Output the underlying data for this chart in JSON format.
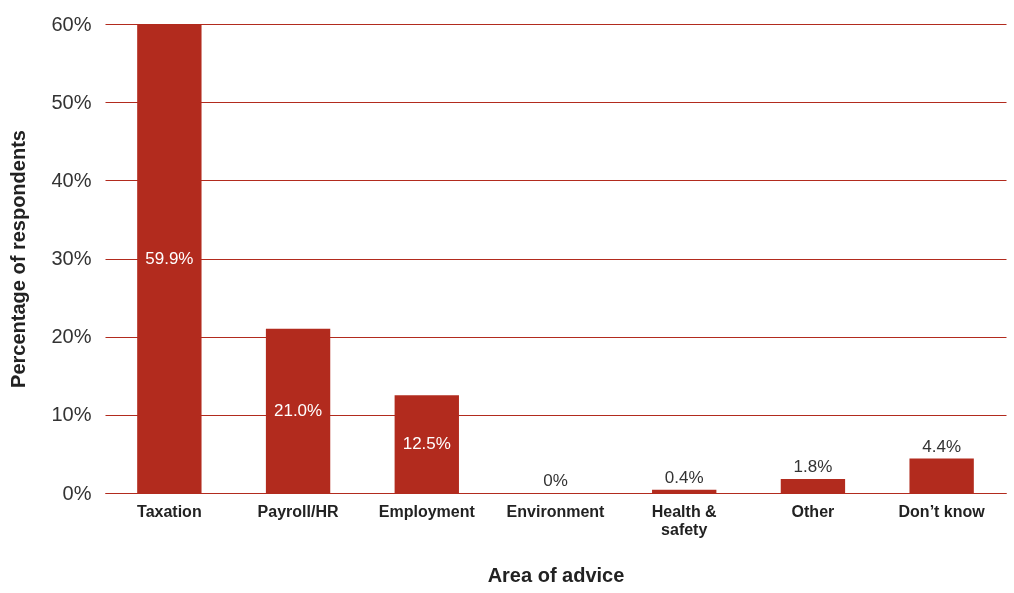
{
  "chart_data": {
    "type": "bar",
    "xlabel": "Area of advice",
    "ylabel": "Percentage of respondents",
    "categories": [
      "Taxation",
      "Payroll/HR",
      "Employment",
      "Environment",
      "Health & safety",
      "Other",
      "Don’t know"
    ],
    "values": [
      59.9,
      21.0,
      12.5,
      0,
      0.4,
      1.8,
      4.4
    ],
    "value_labels": [
      "59.9%",
      "21.0%",
      "12.5%",
      "0%",
      "0.4%",
      "1.8%",
      "4.4%"
    ],
    "color": "#b22b1e",
    "ylim": [
      0,
      60
    ],
    "yticks": [
      {
        "value": 0,
        "label": "0%"
      },
      {
        "value": 10,
        "label": "10%"
      },
      {
        "value": 20,
        "label": "20%"
      },
      {
        "value": 30,
        "label": "30%"
      },
      {
        "value": 40,
        "label": "40%"
      },
      {
        "value": 50,
        "label": "50%"
      },
      {
        "value": 60,
        "label": "60%"
      }
    ],
    "grid": "y"
  }
}
